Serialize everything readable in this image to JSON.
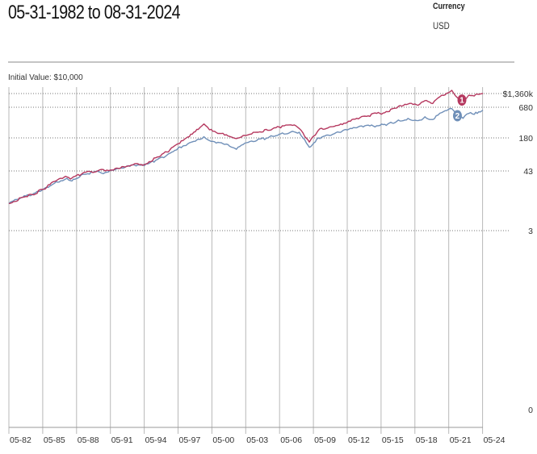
{
  "header": {
    "date_range": "05-31-1982  to  08-31-2024",
    "currency_label": "Currency",
    "currency_value": "USD"
  },
  "chart_data": {
    "type": "line",
    "y_scale": "log",
    "annotation": "Initial Value: $10,000",
    "x_tick_labels": [
      "05-82",
      "05-85",
      "05-88",
      "05-91",
      "05-94",
      "05-97",
      "05-00",
      "05-03",
      "05-06",
      "05-09",
      "05-12",
      "05-15",
      "05-18",
      "05-21",
      "05-24"
    ],
    "y_tick_labels": [
      "$1,360k",
      "680",
      "180",
      "43",
      "3",
      "0"
    ],
    "grid": true,
    "colors": {
      "series_1": "#b5385f",
      "series_2": "#6f8fb8"
    },
    "series": [
      {
        "marker": "1",
        "x": [
          1982.42,
          1983.5,
          1984.5,
          1985.5,
          1986.5,
          1987.6,
          1987.9,
          1989,
          1990.5,
          1991,
          1992.5,
          1993.9,
          1994.5,
          1995.5,
          1996.5,
          1997.5,
          1998.5,
          1999.3,
          1999.8,
          2000.3,
          2000.6,
          2001.5,
          2002.7,
          2003.3,
          2004.5,
          2005.5,
          2006.5,
          2007.7,
          2008.3,
          2008.8,
          2009.2,
          2010,
          2011,
          2012,
          2013,
          2014,
          2015.5,
          2016.2,
          2017,
          2018,
          2018.9,
          2019.5,
          2020.2,
          2020.5,
          2021,
          2021.9,
          2022.4,
          2022.9,
          2023.4,
          2023.9,
          2024.3,
          2024.67
        ],
        "y": [
          10,
          13,
          15,
          19,
          27,
          33,
          30,
          39,
          45,
          43,
          52,
          59,
          57,
          76,
          98,
          140,
          190,
          260,
          330,
          255,
          240,
          220,
          175,
          200,
          230,
          250,
          290,
          310,
          270,
          190,
          150,
          250,
          290,
          330,
          400,
          460,
          520,
          560,
          660,
          800,
          750,
          950,
          820,
          1000,
          1250,
          1600,
          1100,
          950,
          1250,
          1200,
          1300,
          1360
        ]
      },
      {
        "marker": "2",
        "x": [
          1982.42,
          1983.5,
          1984.5,
          1985.5,
          1986.5,
          1987.6,
          1987.9,
          1989,
          1990.5,
          1991,
          1992.5,
          1993.9,
          1994.5,
          1995.5,
          1996.5,
          1997.5,
          1998.5,
          1999.3,
          1999.8,
          2000.3,
          2000.6,
          2001.5,
          2002.7,
          2003.3,
          2004.5,
          2005.5,
          2006.5,
          2007.7,
          2008.3,
          2008.8,
          2009.2,
          2010,
          2011,
          2012,
          2013,
          2014,
          2015.5,
          2016.2,
          2017,
          2018,
          2018.9,
          2019.5,
          2020.2,
          2020.5,
          2021,
          2021.9,
          2022.4,
          2022.9,
          2023.4,
          2023.9,
          2024.3,
          2024.67
        ],
        "y": [
          10,
          13,
          15,
          19,
          25,
          31,
          28,
          37,
          41,
          40,
          49,
          56,
          54,
          68,
          85,
          115,
          145,
          170,
          190,
          160,
          155,
          140,
          110,
          135,
          160,
          180,
          210,
          240,
          230,
          165,
          120,
          180,
          200,
          230,
          270,
          290,
          310,
          330,
          370,
          420,
          380,
          450,
          400,
          470,
          540,
          640,
          470,
          420,
          520,
          500,
          560,
          600
        ]
      }
    ]
  }
}
